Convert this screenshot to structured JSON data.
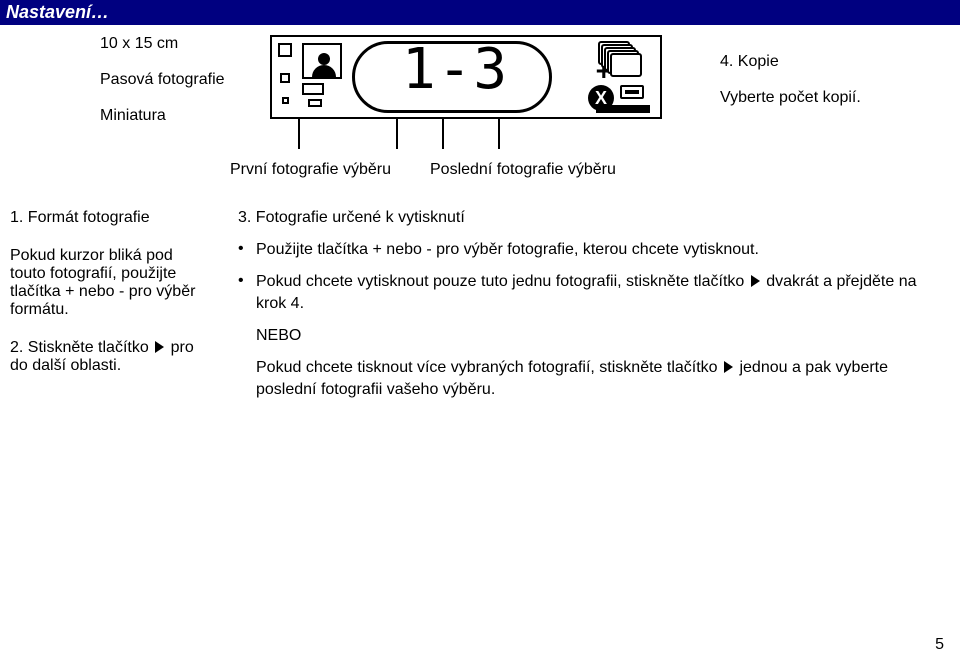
{
  "header": "Nastavení…",
  "left": {
    "size": "10 x 15 cm",
    "passport": "Pasová fotografie",
    "thumbnail": "Miniatura"
  },
  "display": {
    "digits": "1-3",
    "plus": "+",
    "x": "X"
  },
  "right": {
    "copies": "4. Kopie",
    "select_copies": "Vyberte počet kopií."
  },
  "labels": {
    "first": "První fotografie výběru",
    "last": "Poslední fotografie výběru"
  },
  "col_left": {
    "item1_title": "1. Formát fotografie",
    "para": "Pokud kurzor bliká pod touto fotografií, použijte tlačítka + nebo - pro výběr formátu.",
    "item2": "2. Stiskněte tlačítko  pro do další oblasti.",
    "item2_a": "2. Stiskněte tlačítko ",
    "item2_b": " pro do další oblasti."
  },
  "col_right": {
    "heading": "3. Fotografie určené k vytisknutí",
    "bullet1": "Použijte tlačítka + nebo - pro výběr fotografie, kterou chcete vytisknout.",
    "bullet2a": "Pokud chcete vytisknout pouze tuto jednu fotografii, stiskněte tlačítko ",
    "bullet2b": " dvakrát a přejděte na krok 4.",
    "nebo": "NEBO",
    "last_a": "Pokud chcete tisknout více vybraných fotografií, stiskněte tlačítko ",
    "last_b": " jednou a pak vyberte poslední fotografii vašeho výběru."
  },
  "page": "5"
}
